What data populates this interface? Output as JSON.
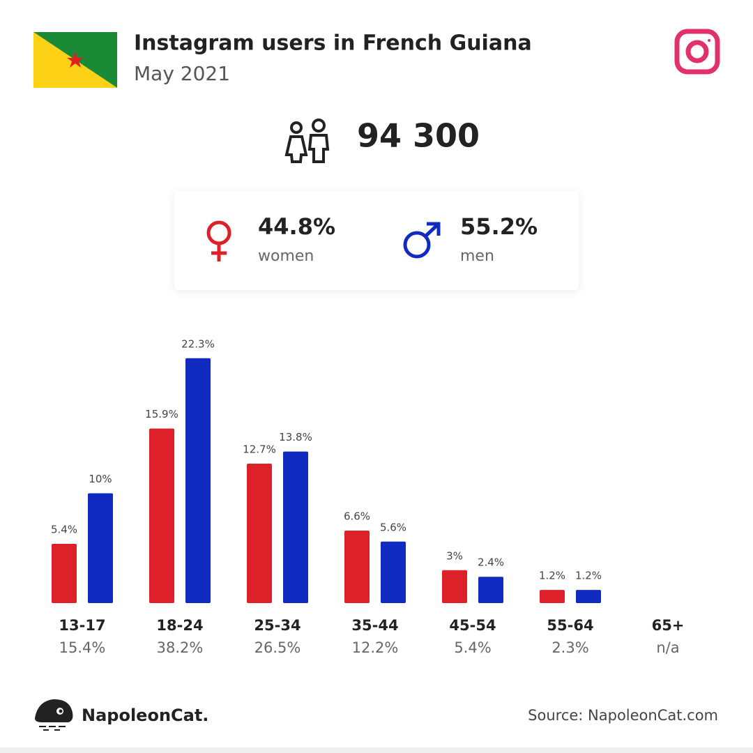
{
  "header": {
    "title": "Instagram users in French Guiana",
    "subtitle": "May 2021"
  },
  "total_users": "94 300",
  "gender_shares": [
    "44.8%",
    "55.2%"
  ],
  "chart_data": {
    "type": "bar",
    "categories": [
      "13-17",
      "18-24",
      "25-34",
      "35-44",
      "45-54",
      "55-64",
      "65+"
    ],
    "totals": [
      15.4,
      38.2,
      26.5,
      12.2,
      5.4,
      2.3,
      null
    ],
    "total_labels": [
      "15.4%",
      "38.2%",
      "26.5%",
      "12.2%",
      "5.4%",
      "2.3%",
      "n/a"
    ],
    "series": [
      {
        "name": "women",
        "color": "#dd2128",
        "values": [
          5.4,
          15.9,
          12.7,
          6.6,
          3,
          1.2,
          null
        ],
        "value_labels": [
          "5.4%",
          "15.9%",
          "12.7%",
          "6.6%",
          "3%",
          "1.2%",
          null
        ]
      },
      {
        "name": "men",
        "color": "#112bc1",
        "values": [
          10,
          22.3,
          13.8,
          5.6,
          2.4,
          1.2,
          null
        ],
        "value_labels": [
          "10%",
          "22.3%",
          "13.8%",
          "5.6%",
          "2.4%",
          "1.2%",
          null
        ]
      }
    ]
  },
  "footer": {
    "brand": "NapoleonCat.",
    "source": "Source: NapoleonCat.com"
  }
}
